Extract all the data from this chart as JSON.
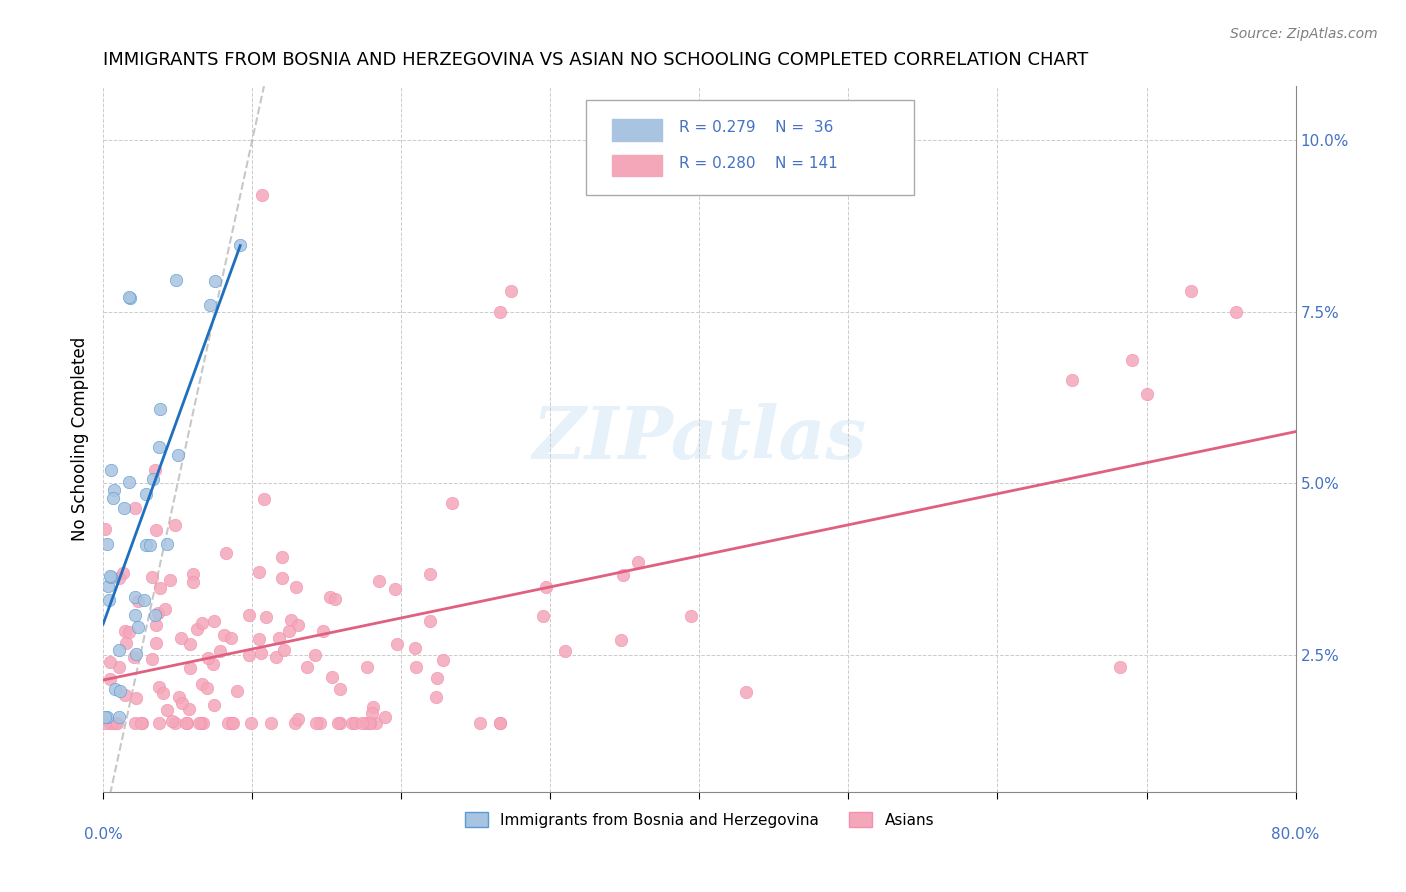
{
  "title": "IMMIGRANTS FROM BOSNIA AND HERZEGOVINA VS ASIAN NO SCHOOLING COMPLETED CORRELATION CHART",
  "source": "Source: ZipAtlas.com",
  "ylabel": "No Schooling Completed",
  "xlim": [
    0.0,
    0.8
  ],
  "ylim": [
    0.005,
    0.108
  ],
  "yticks": [
    0.025,
    0.05,
    0.075,
    0.1
  ],
  "ytick_labels": [
    "2.5%",
    "5.0%",
    "7.5%",
    "10.0%"
  ],
  "color_blue": "#a8c4e0",
  "color_pink": "#f4a7b9",
  "color_blue_dark": "#5b9bd5",
  "color_pink_dark": "#f48fb1",
  "color_trend_blue": "#1f6fbf",
  "color_trend_pink": "#e06080",
  "color_diag": "#b0b0b0",
  "watermark": "ZIPatlas"
}
